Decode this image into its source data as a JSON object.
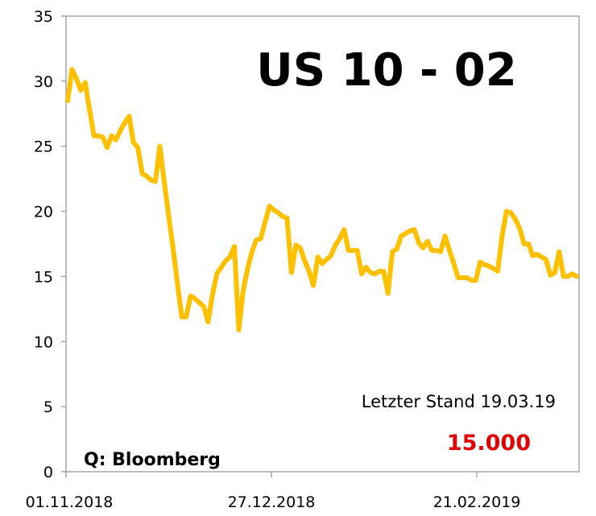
{
  "chart_data": {
    "type": "line",
    "title": "US 10 - 02",
    "xlabel": "",
    "ylabel": "",
    "ylim": [
      0,
      35
    ],
    "yticks": [
      0,
      5,
      10,
      15,
      20,
      25,
      30,
      35
    ],
    "xticks": [
      "01.11.2018",
      "27.12.2018",
      "21.02.2019"
    ],
    "grid": false,
    "line_color": "#FFC000",
    "note_label": "Letzter Stand 19.03.19",
    "last_value_label": "15.000",
    "last_value_color": "#E00000",
    "source": "Q: Bloomberg",
    "series": [
      {
        "values": [
          28.5,
          30.9,
          30.2,
          29.3,
          29.9,
          27.8,
          25.8,
          25.8,
          25.7,
          24.9,
          25.8,
          25.5,
          26.2,
          26.8,
          27.3,
          25.3,
          24.9,
          22.9,
          22.7,
          22.4,
          22.3,
          25.0,
          22.3,
          19.7,
          17.2,
          14.5,
          11.9,
          11.9,
          13.5,
          13.3,
          13.0,
          12.7,
          11.5,
          13.6,
          15.2,
          15.7,
          16.2,
          16.5,
          17.3,
          10.9,
          13.9,
          15.6,
          16.9,
          17.8,
          17.9,
          19.2,
          20.4,
          20.1,
          19.9,
          19.6,
          19.5,
          15.3,
          17.4,
          17.2,
          16.2,
          15.4,
          14.3,
          16.5,
          16.0,
          16.3,
          16.6,
          17.4,
          17.9,
          18.6,
          17.0,
          17.0,
          17.0,
          15.2,
          15.7,
          15.3,
          15.2,
          15.4,
          15.4,
          13.7,
          16.9,
          17.1,
          18.1,
          18.3,
          18.5,
          18.6,
          17.6,
          17.2,
          17.7,
          17.0,
          17.0,
          16.9,
          18.1,
          17.0,
          16.0,
          14.9,
          14.9,
          14.9,
          14.7,
          14.7,
          16.1,
          15.9,
          15.8,
          15.6,
          15.4,
          18.1,
          20.0,
          19.9,
          19.4,
          18.7,
          17.5,
          17.5,
          16.6,
          16.7,
          16.5,
          16.3,
          15.1,
          15.3,
          16.9,
          15.0,
          15.0,
          15.2,
          15.0
        ]
      }
    ]
  }
}
